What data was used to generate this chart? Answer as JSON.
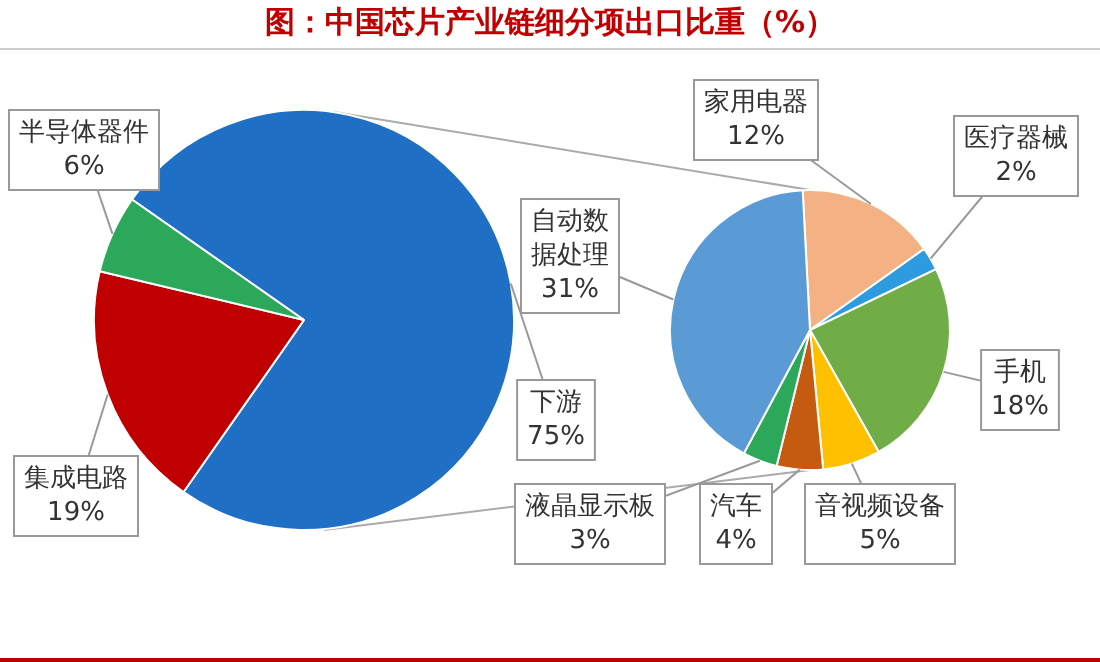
{
  "chart_data": [
    {
      "type": "pie",
      "title": "图：中国芯片产业链细分项出口比重（%）",
      "categories": [
        "下游",
        "集成电路",
        "半导体器件"
      ],
      "values": [
        75,
        19,
        6
      ],
      "colors": [
        "#1f6fc5",
        "#c00000",
        "#2ca85a"
      ],
      "value_labels": [
        "75%",
        "19%",
        "6%"
      ]
    },
    {
      "type": "pie",
      "categories": [
        "家用电器",
        "医疗器械",
        "手机",
        "音视频设备",
        "汽车",
        "液晶显示板",
        "自动数据处理"
      ],
      "values": [
        12,
        2,
        18,
        5,
        4,
        3,
        31
      ],
      "colors": [
        "#f4b183",
        "#2e9be0",
        "#70ad47",
        "#ffc000",
        "#c55a11",
        "#2ca85a",
        "#5b9bd5"
      ],
      "value_labels": [
        "12%",
        "2%",
        "18%",
        "5%",
        "4%",
        "3%",
        "31%"
      ]
    }
  ]
}
